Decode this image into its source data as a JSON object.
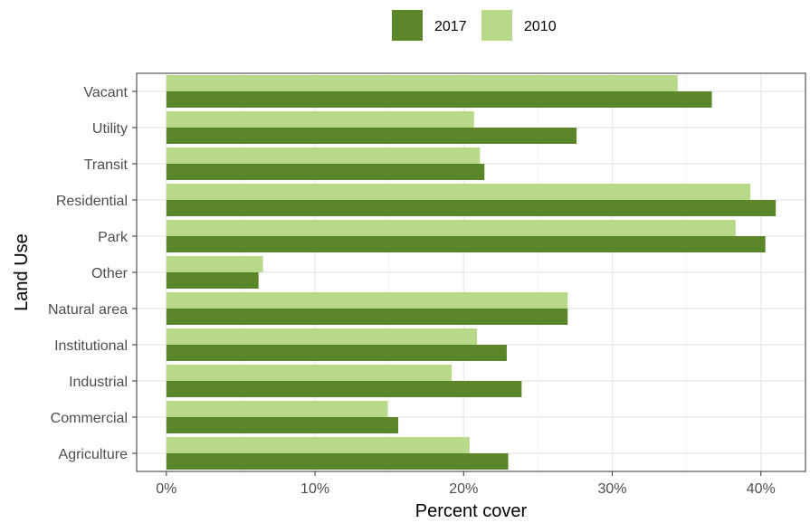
{
  "chart_data": {
    "type": "bar",
    "orientation": "horizontal",
    "categories": [
      "Agriculture",
      "Commercial",
      "Industrial",
      "Institutional",
      "Natural area",
      "Other",
      "Park",
      "Residential",
      "Transit",
      "Utility",
      "Vacant"
    ],
    "series": [
      {
        "name": "2017",
        "color": "#5b8529",
        "values": [
          23.0,
          15.6,
          23.9,
          22.9,
          27.0,
          6.2,
          40.3,
          41.0,
          21.4,
          27.6,
          36.7
        ]
      },
      {
        "name": "2010",
        "color": "#b8d98a",
        "values": [
          20.4,
          14.9,
          19.2,
          20.9,
          27.0,
          6.5,
          38.3,
          39.3,
          21.1,
          20.7,
          34.4
        ]
      }
    ],
    "xlabel": "Percent cover",
    "ylabel": "Land Use",
    "xlim": [
      -2,
      43
    ],
    "x_ticks": [
      0,
      10,
      20,
      30,
      40
    ],
    "x_tick_labels": [
      "0%",
      "10%",
      "20%",
      "30%",
      "40%"
    ],
    "grid": true,
    "legend_position": "top"
  }
}
